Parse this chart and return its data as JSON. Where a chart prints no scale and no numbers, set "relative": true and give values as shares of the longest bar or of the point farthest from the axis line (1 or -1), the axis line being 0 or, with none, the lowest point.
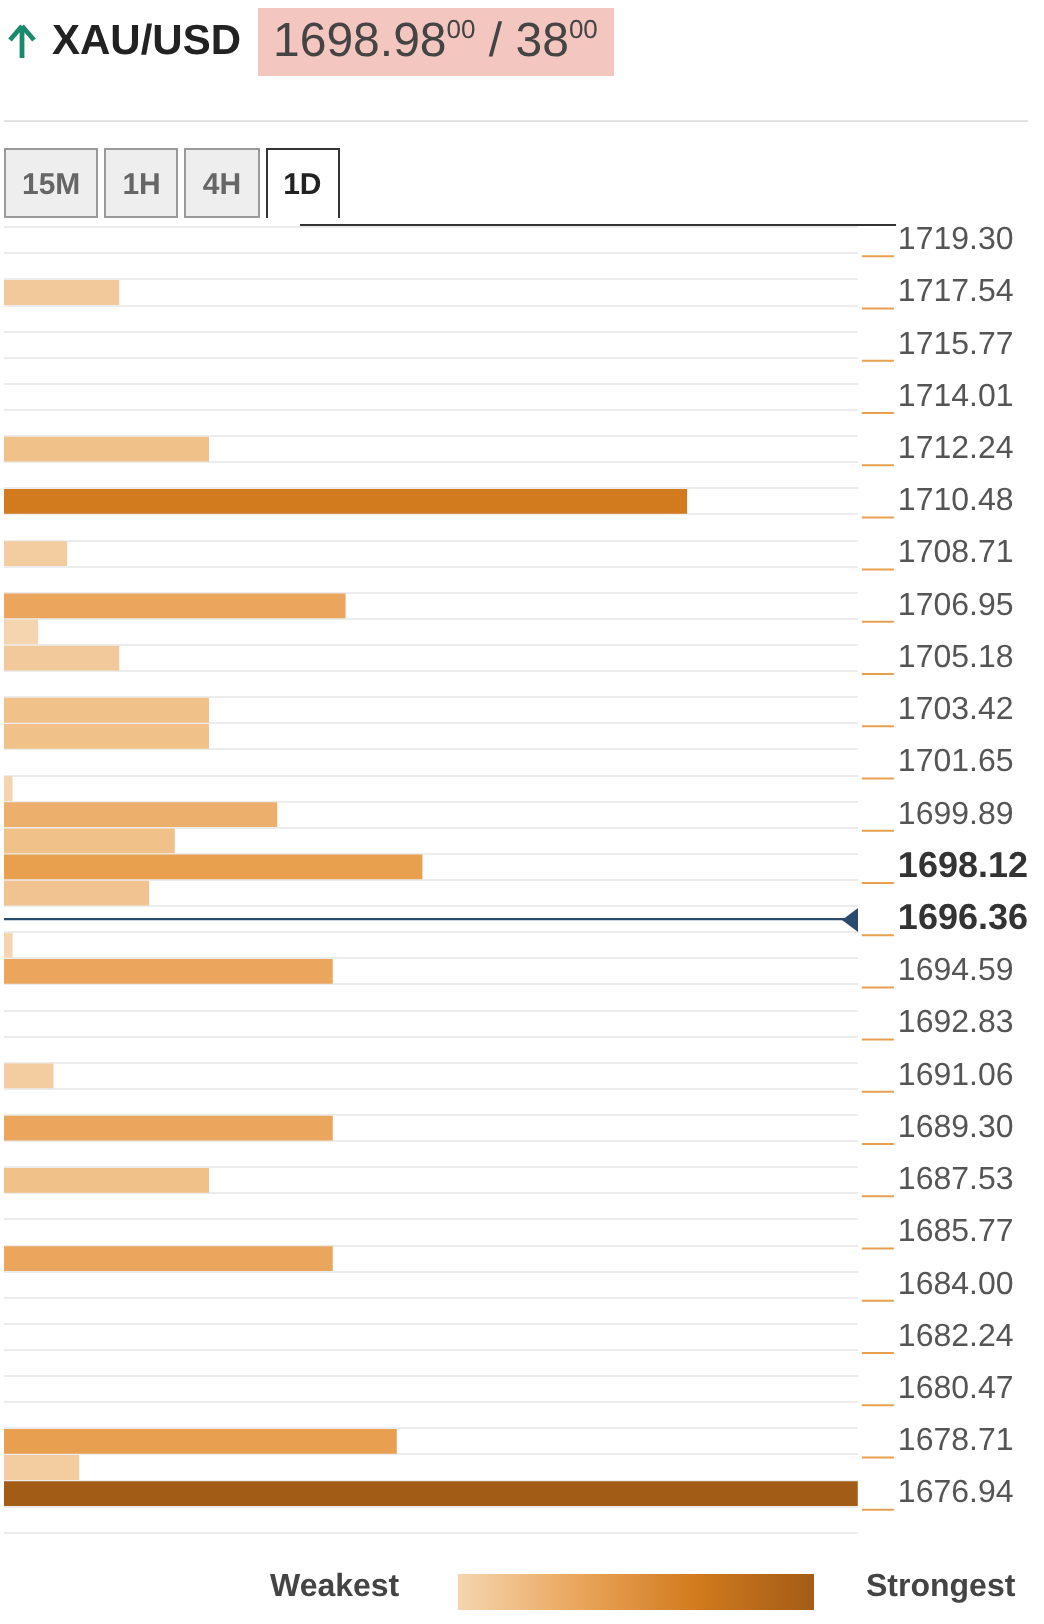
{
  "chart_data": {
    "type": "bar",
    "orientation": "horizontal",
    "relative": true,
    "title": "XAU/USD",
    "subtitle": "1698.98$^{00}$ / 38$^{00}$",
    "categories": [
      "1719.30",
      null,
      "1717.54",
      null,
      "1715.77",
      null,
      "1714.01",
      null,
      "1712.24",
      null,
      "1710.48",
      null,
      "1708.71",
      null,
      "1706.95",
      null,
      "1705.18",
      null,
      "1703.42",
      null,
      "1701.65",
      null,
      "1699.89",
      null,
      "1698.12",
      null,
      "1696.36",
      null,
      "1694.59",
      null,
      "1692.83",
      null,
      "1691.06",
      null,
      "1689.30",
      null,
      "1687.53",
      null,
      "1685.77",
      null,
      "1684.00",
      null,
      "1682.24",
      null,
      "1680.47",
      null,
      "1678.71",
      null,
      "1676.94",
      null
    ],
    "values": [
      null,
      null,
      0.135,
      null,
      null,
      null,
      null,
      null,
      0.24,
      null,
      0.8,
      null,
      0.074,
      null,
      0.4,
      0.04,
      0.135,
      null,
      0.24,
      0.24,
      null,
      0.01,
      0.32,
      0.2,
      0.49,
      0.17,
      null,
      0.01,
      0.385,
      null,
      null,
      null,
      0.058,
      null,
      0.385,
      null,
      0.24,
      null,
      null,
      0.385,
      null,
      null,
      null,
      null,
      null,
      null,
      0.46,
      0.088,
      1,
      null
    ],
    "colors": [
      null,
      null,
      "#f2c99a",
      null,
      null,
      null,
      null,
      null,
      "#f0c189",
      null,
      "#d27a1e",
      null,
      "#f3cc9f",
      null,
      "#eaa65c",
      "#f5d5b0",
      "#f2c99a",
      null,
      "#f0c189",
      "#f0c189",
      null,
      "#f5d5b0",
      "#ecb06c",
      "#f0c189",
      "#e8a04f",
      "#f0c391",
      null,
      "#f5d5b0",
      "#eaa65c",
      null,
      null,
      null,
      "#f3cc9f",
      null,
      "#eaa65c",
      null,
      "#f0c189",
      null,
      null,
      "#eaa65c",
      null,
      null,
      null,
      null,
      null,
      null,
      "#e89f50",
      "#f3cc9f",
      "#a35c16",
      null
    ],
    "grid": "y",
    "ref_lines": [
      {
        "axis": "y",
        "value": "1696.36",
        "color": "#2c4a6e"
      }
    ],
    "annotations": [
      "15M",
      "1H",
      "4H",
      "1D",
      "Weakest",
      "Strongest"
    ]
  }
}
